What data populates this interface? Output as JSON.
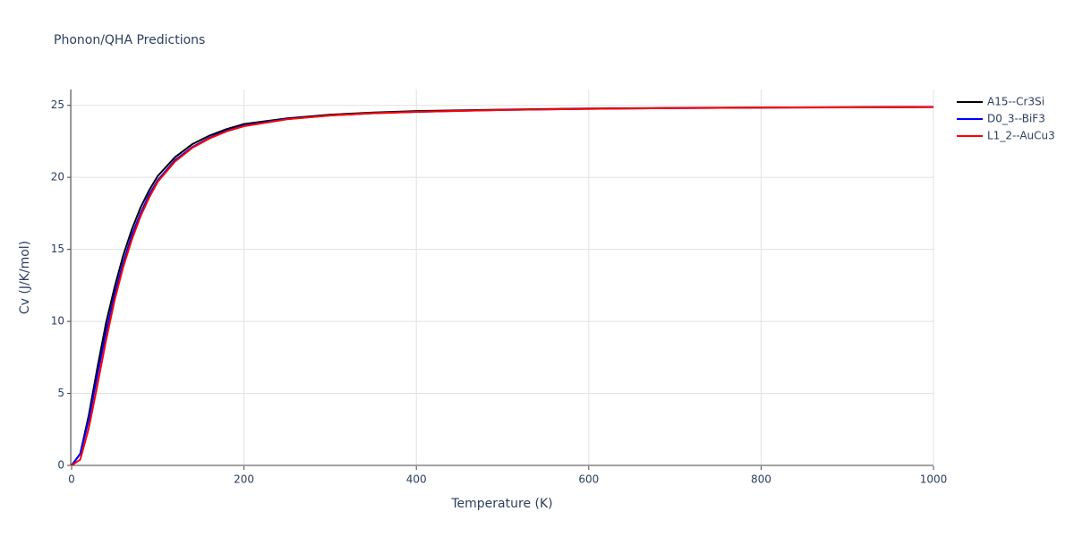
{
  "chart_data": {
    "type": "line",
    "title": "Phonon/QHA Predictions",
    "x_label": "Temperature (K)",
    "y_label": "Cv (J/K/mol)",
    "x": [
      0,
      10,
      20,
      30,
      40,
      50,
      60,
      70,
      80,
      90,
      100,
      120,
      140,
      160,
      180,
      200,
      250,
      300,
      350,
      400,
      500,
      600,
      700,
      800,
      900,
      1000
    ],
    "series": [
      {
        "name": "A15--Cr3Si",
        "color": "#000000",
        "values": [
          0,
          0.8,
          3.5,
          6.8,
          9.9,
          12.4,
          14.6,
          16.4,
          17.9,
          19.1,
          20.1,
          21.4,
          22.3,
          22.9,
          23.35,
          23.7,
          24.1,
          24.35,
          24.5,
          24.6,
          24.7,
          24.78,
          24.82,
          24.85,
          24.87,
          24.89
        ]
      },
      {
        "name": "D0_3--BiF3",
        "color": "#0000ff",
        "values": [
          0,
          0.8,
          3.2,
          6.3,
          9.3,
          11.9,
          14.1,
          16.0,
          17.5,
          18.8,
          19.8,
          21.2,
          22.1,
          22.75,
          23.25,
          23.6,
          24.05,
          24.3,
          24.45,
          24.55,
          24.68,
          24.76,
          24.81,
          24.84,
          24.86,
          24.88
        ]
      },
      {
        "name": "L1_2--AuCu3",
        "color": "#ff0000",
        "values": [
          0,
          0.4,
          2.6,
          5.6,
          8.7,
          11.5,
          13.8,
          15.7,
          17.3,
          18.6,
          19.7,
          21.1,
          22.05,
          22.7,
          23.2,
          23.55,
          24.03,
          24.3,
          24.45,
          24.55,
          24.68,
          24.76,
          24.81,
          24.84,
          24.86,
          24.88
        ]
      }
    ],
    "xlim": [
      0,
      1000
    ],
    "xticks": [
      0,
      200,
      400,
      600,
      800,
      1000
    ],
    "ylim": [
      0,
      26.1
    ],
    "yticks": [
      0,
      5,
      10,
      15,
      20,
      25
    ],
    "grid": true,
    "legend": "right"
  }
}
